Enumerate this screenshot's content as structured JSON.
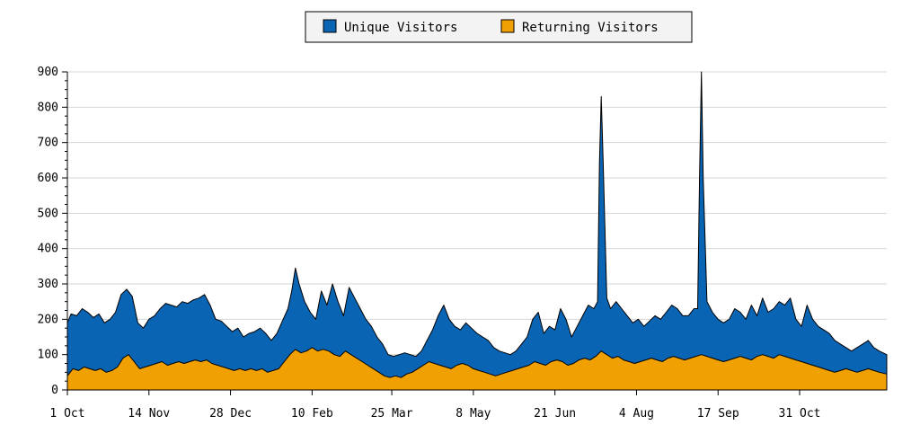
{
  "chart_data": {
    "type": "area",
    "title": "",
    "xlabel": "",
    "ylabel": "",
    "ylim": [
      0,
      900
    ],
    "yticks": [
      0,
      100,
      200,
      300,
      400,
      500,
      600,
      700,
      800,
      900
    ],
    "grid": true,
    "legend_position": "top-center",
    "x_tick_labels": [
      "1 Oct",
      "14 Nov",
      "28 Dec",
      "10 Feb",
      "25 Mar",
      "8 May",
      "21 Jun",
      "4 Aug",
      "17 Sep",
      "31 Oct"
    ],
    "x_tick_days": [
      0,
      44,
      88,
      132,
      175,
      219,
      263,
      307,
      351,
      395
    ],
    "x_range_days": [
      0,
      442
    ],
    "series": [
      {
        "name": "Unique Visitors",
        "color": "#0a64b4",
        "points": [
          [
            0,
            190
          ],
          [
            2,
            215
          ],
          [
            5,
            210
          ],
          [
            8,
            230
          ],
          [
            11,
            220
          ],
          [
            14,
            205
          ],
          [
            17,
            215
          ],
          [
            20,
            190
          ],
          [
            23,
            200
          ],
          [
            26,
            220
          ],
          [
            29,
            270
          ],
          [
            32,
            285
          ],
          [
            35,
            265
          ],
          [
            38,
            190
          ],
          [
            41,
            175
          ],
          [
            44,
            200
          ],
          [
            47,
            210
          ],
          [
            50,
            230
          ],
          [
            53,
            245
          ],
          [
            56,
            240
          ],
          [
            59,
            235
          ],
          [
            62,
            250
          ],
          [
            65,
            245
          ],
          [
            68,
            255
          ],
          [
            71,
            260
          ],
          [
            74,
            270
          ],
          [
            77,
            240
          ],
          [
            80,
            200
          ],
          [
            83,
            195
          ],
          [
            86,
            180
          ],
          [
            89,
            165
          ],
          [
            92,
            175
          ],
          [
            95,
            150
          ],
          [
            98,
            160
          ],
          [
            101,
            165
          ],
          [
            104,
            175
          ],
          [
            107,
            160
          ],
          [
            110,
            140
          ],
          [
            113,
            160
          ],
          [
            116,
            195
          ],
          [
            119,
            230
          ],
          [
            121,
            280
          ],
          [
            123,
            345
          ],
          [
            125,
            300
          ],
          [
            128,
            250
          ],
          [
            131,
            220
          ],
          [
            134,
            200
          ],
          [
            137,
            280
          ],
          [
            140,
            240
          ],
          [
            143,
            300
          ],
          [
            146,
            250
          ],
          [
            149,
            210
          ],
          [
            152,
            290
          ],
          [
            155,
            260
          ],
          [
            158,
            230
          ],
          [
            161,
            200
          ],
          [
            164,
            180
          ],
          [
            167,
            150
          ],
          [
            170,
            130
          ],
          [
            173,
            100
          ],
          [
            176,
            95
          ],
          [
            179,
            100
          ],
          [
            182,
            105
          ],
          [
            185,
            100
          ],
          [
            188,
            95
          ],
          [
            191,
            110
          ],
          [
            194,
            140
          ],
          [
            197,
            170
          ],
          [
            200,
            210
          ],
          [
            203,
            240
          ],
          [
            206,
            200
          ],
          [
            209,
            180
          ],
          [
            212,
            170
          ],
          [
            215,
            190
          ],
          [
            218,
            175
          ],
          [
            221,
            160
          ],
          [
            224,
            150
          ],
          [
            227,
            140
          ],
          [
            230,
            120
          ],
          [
            233,
            110
          ],
          [
            236,
            105
          ],
          [
            239,
            100
          ],
          [
            242,
            110
          ],
          [
            245,
            130
          ],
          [
            248,
            150
          ],
          [
            251,
            200
          ],
          [
            254,
            220
          ],
          [
            257,
            160
          ],
          [
            260,
            180
          ],
          [
            263,
            170
          ],
          [
            266,
            230
          ],
          [
            269,
            200
          ],
          [
            272,
            150
          ],
          [
            275,
            180
          ],
          [
            278,
            210
          ],
          [
            281,
            240
          ],
          [
            284,
            230
          ],
          [
            286,
            250
          ],
          [
            287,
            640
          ],
          [
            288,
            830
          ],
          [
            289,
            650
          ],
          [
            291,
            260
          ],
          [
            293,
            230
          ],
          [
            296,
            250
          ],
          [
            299,
            230
          ],
          [
            302,
            210
          ],
          [
            305,
            190
          ],
          [
            308,
            200
          ],
          [
            311,
            180
          ],
          [
            314,
            195
          ],
          [
            317,
            210
          ],
          [
            320,
            200
          ],
          [
            323,
            220
          ],
          [
            326,
            240
          ],
          [
            329,
            230
          ],
          [
            332,
            210
          ],
          [
            335,
            210
          ],
          [
            338,
            230
          ],
          [
            340,
            230
          ],
          [
            341,
            600
          ],
          [
            342,
            900
          ],
          [
            343,
            600
          ],
          [
            345,
            250
          ],
          [
            348,
            220
          ],
          [
            351,
            200
          ],
          [
            354,
            190
          ],
          [
            357,
            200
          ],
          [
            360,
            230
          ],
          [
            363,
            220
          ],
          [
            366,
            200
          ],
          [
            369,
            240
          ],
          [
            372,
            210
          ],
          [
            375,
            260
          ],
          [
            378,
            220
          ],
          [
            381,
            230
          ],
          [
            384,
            250
          ],
          [
            387,
            240
          ],
          [
            390,
            260
          ],
          [
            393,
            200
          ],
          [
            396,
            180
          ],
          [
            399,
            240
          ],
          [
            402,
            200
          ],
          [
            405,
            180
          ],
          [
            408,
            170
          ],
          [
            411,
            160
          ],
          [
            414,
            140
          ],
          [
            417,
            130
          ],
          [
            420,
            120
          ],
          [
            423,
            110
          ],
          [
            426,
            120
          ],
          [
            429,
            130
          ],
          [
            432,
            140
          ],
          [
            435,
            120
          ],
          [
            438,
            110
          ],
          [
            442,
            100
          ]
        ]
      },
      {
        "name": "Returning Visitors",
        "color": "#f0a000",
        "points": [
          [
            0,
            40
          ],
          [
            3,
            60
          ],
          [
            6,
            55
          ],
          [
            9,
            65
          ],
          [
            12,
            60
          ],
          [
            15,
            55
          ],
          [
            18,
            60
          ],
          [
            21,
            50
          ],
          [
            24,
            55
          ],
          [
            27,
            65
          ],
          [
            30,
            90
          ],
          [
            33,
            100
          ],
          [
            36,
            80
          ],
          [
            39,
            60
          ],
          [
            42,
            65
          ],
          [
            45,
            70
          ],
          [
            48,
            75
          ],
          [
            51,
            80
          ],
          [
            54,
            70
          ],
          [
            57,
            75
          ],
          [
            60,
            80
          ],
          [
            63,
            75
          ],
          [
            66,
            80
          ],
          [
            69,
            85
          ],
          [
            72,
            80
          ],
          [
            75,
            85
          ],
          [
            78,
            75
          ],
          [
            81,
            70
          ],
          [
            84,
            65
          ],
          [
            87,
            60
          ],
          [
            90,
            55
          ],
          [
            93,
            60
          ],
          [
            96,
            55
          ],
          [
            99,
            60
          ],
          [
            102,
            55
          ],
          [
            105,
            60
          ],
          [
            108,
            50
          ],
          [
            111,
            55
          ],
          [
            114,
            60
          ],
          [
            117,
            80
          ],
          [
            120,
            100
          ],
          [
            123,
            115
          ],
          [
            126,
            105
          ],
          [
            129,
            110
          ],
          [
            132,
            120
          ],
          [
            135,
            110
          ],
          [
            138,
            115
          ],
          [
            141,
            110
          ],
          [
            144,
            100
          ],
          [
            147,
            95
          ],
          [
            150,
            110
          ],
          [
            153,
            100
          ],
          [
            156,
            90
          ],
          [
            159,
            80
          ],
          [
            162,
            70
          ],
          [
            165,
            60
          ],
          [
            168,
            50
          ],
          [
            171,
            40
          ],
          [
            174,
            35
          ],
          [
            177,
            40
          ],
          [
            180,
            35
          ],
          [
            183,
            45
          ],
          [
            186,
            50
          ],
          [
            189,
            60
          ],
          [
            192,
            70
          ],
          [
            195,
            80
          ],
          [
            198,
            75
          ],
          [
            201,
            70
          ],
          [
            204,
            65
          ],
          [
            207,
            60
          ],
          [
            210,
            70
          ],
          [
            213,
            75
          ],
          [
            216,
            70
          ],
          [
            219,
            60
          ],
          [
            222,
            55
          ],
          [
            225,
            50
          ],
          [
            228,
            45
          ],
          [
            231,
            40
          ],
          [
            234,
            45
          ],
          [
            237,
            50
          ],
          [
            240,
            55
          ],
          [
            243,
            60
          ],
          [
            246,
            65
          ],
          [
            249,
            70
          ],
          [
            252,
            80
          ],
          [
            255,
            75
          ],
          [
            258,
            70
          ],
          [
            261,
            80
          ],
          [
            264,
            85
          ],
          [
            267,
            80
          ],
          [
            270,
            70
          ],
          [
            273,
            75
          ],
          [
            276,
            85
          ],
          [
            279,
            90
          ],
          [
            282,
            85
          ],
          [
            285,
            95
          ],
          [
            288,
            110
          ],
          [
            291,
            100
          ],
          [
            294,
            90
          ],
          [
            297,
            95
          ],
          [
            300,
            85
          ],
          [
            303,
            80
          ],
          [
            306,
            75
          ],
          [
            309,
            80
          ],
          [
            312,
            85
          ],
          [
            315,
            90
          ],
          [
            318,
            85
          ],
          [
            321,
            80
          ],
          [
            324,
            90
          ],
          [
            327,
            95
          ],
          [
            330,
            90
          ],
          [
            333,
            85
          ],
          [
            336,
            90
          ],
          [
            339,
            95
          ],
          [
            342,
            100
          ],
          [
            345,
            95
          ],
          [
            348,
            90
          ],
          [
            351,
            85
          ],
          [
            354,
            80
          ],
          [
            357,
            85
          ],
          [
            360,
            90
          ],
          [
            363,
            95
          ],
          [
            366,
            90
          ],
          [
            369,
            85
          ],
          [
            372,
            95
          ],
          [
            375,
            100
          ],
          [
            378,
            95
          ],
          [
            381,
            90
          ],
          [
            384,
            100
          ],
          [
            387,
            95
          ],
          [
            390,
            90
          ],
          [
            393,
            85
          ],
          [
            396,
            80
          ],
          [
            399,
            75
          ],
          [
            402,
            70
          ],
          [
            405,
            65
          ],
          [
            408,
            60
          ],
          [
            411,
            55
          ],
          [
            414,
            50
          ],
          [
            417,
            55
          ],
          [
            420,
            60
          ],
          [
            423,
            55
          ],
          [
            426,
            50
          ],
          [
            429,
            55
          ],
          [
            432,
            60
          ],
          [
            435,
            55
          ],
          [
            438,
            50
          ],
          [
            442,
            45
          ]
        ]
      }
    ]
  }
}
